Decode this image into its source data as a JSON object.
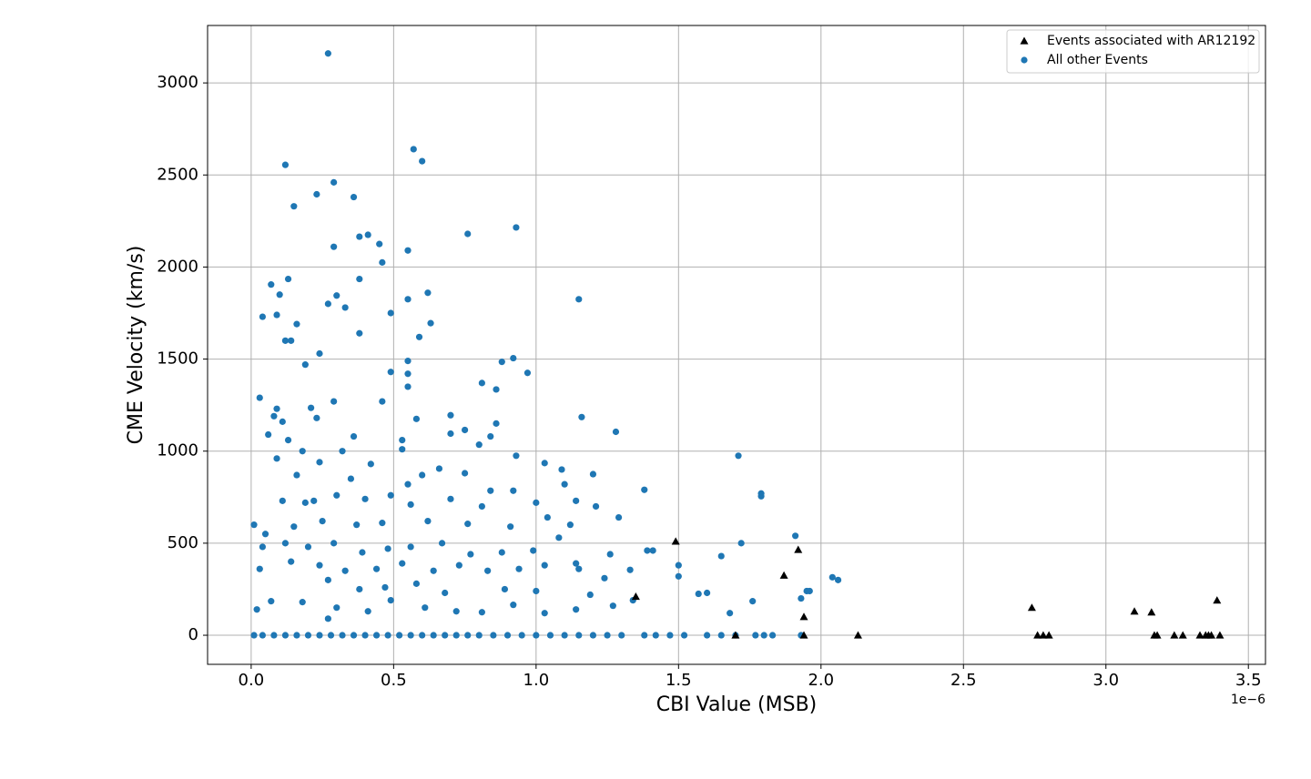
{
  "chart_data": {
    "type": "scatter",
    "x_label": "CBI Value (MSB)",
    "y_label": "CME Velocity (km/s)",
    "x_offset_label": "1e−6",
    "xlim": [
      -0.153,
      3.56
    ],
    "ylim": [
      -158,
      3312
    ],
    "xticks": [
      {
        "value": 0,
        "label": "0.0"
      },
      0.5,
      {
        "value": 1,
        "label": "1.0"
      },
      1.5,
      {
        "value": 2,
        "label": "2.0"
      },
      2.5,
      {
        "value": 3,
        "label": "3.0"
      },
      3.5
    ],
    "yticks": [
      0,
      500,
      1000,
      1500,
      2000,
      2500,
      3000
    ],
    "grid": true,
    "legend": "upper right",
    "series": [
      {
        "name": "Events associated with AR12192",
        "color": "#000000",
        "marker": "triangle",
        "x": [
          1.35,
          1.49,
          1.7,
          1.87,
          1.92,
          1.94,
          1.94,
          2.13,
          2.74,
          2.76,
          2.78,
          2.8,
          3.1,
          3.16,
          3.17,
          3.18,
          3.24,
          3.27,
          3.33,
          3.35,
          3.36,
          3.37,
          3.39,
          3.4
        ],
        "values": [
          210,
          510,
          0,
          325,
          465,
          100,
          0,
          0,
          150,
          0,
          0,
          0,
          130,
          125,
          0,
          0,
          0,
          0,
          0,
          0,
          0,
          0,
          190,
          0
        ]
      },
      {
        "name": "All other Events",
        "color": "#1f77b4",
        "marker": "circle",
        "x": [
          0.27,
          0.57,
          0.6,
          0.12,
          0.93,
          0.29,
          0.23,
          0.36,
          0.15,
          0.76,
          0.41,
          0.38,
          0.55,
          0.29,
          0.45,
          0.46,
          0.13,
          0.07,
          0.38,
          0.62,
          0.1,
          0.27,
          0.3,
          0.55,
          1.15,
          0.04,
          0.09,
          0.33,
          0.49,
          0.63,
          0.16,
          0.12,
          0.14,
          0.59,
          0.38,
          0.92,
          0.88,
          0.97,
          0.55,
          0.19,
          0.24,
          0.55,
          0.49,
          0.81,
          0.86,
          0.55,
          0.03,
          0.09,
          0.21,
          0.29,
          0.46,
          0.7,
          0.58,
          1.16,
          0.08,
          0.11,
          0.23,
          0.86,
          0.75,
          1.28,
          0.06,
          0.13,
          0.36,
          0.7,
          0.53,
          0.8,
          0.84,
          0.18,
          0.32,
          0.53,
          0.93,
          1.71,
          0.09,
          0.24,
          0.42,
          0.66,
          1.03,
          1.09,
          1.2,
          0.16,
          0.35,
          0.6,
          0.75,
          0.55,
          1.1,
          0.22,
          0.3,
          0.4,
          0.49,
          0.7,
          0.84,
          0.92,
          1.0,
          1.14,
          1.38,
          1.79,
          1.79,
          0.11,
          0.19,
          0.56,
          0.81,
          0.01,
          0.05,
          0.15,
          0.25,
          0.37,
          0.46,
          0.62,
          0.76,
          0.91,
          1.04,
          1.12,
          1.21,
          1.29,
          0.04,
          0.12,
          0.2,
          0.29,
          0.39,
          0.48,
          0.56,
          0.67,
          0.77,
          0.88,
          0.99,
          1.08,
          1.14,
          1.26,
          1.39,
          1.41,
          1.5,
          1.65,
          1.72,
          1.91,
          0.03,
          0.14,
          0.24,
          0.33,
          0.44,
          0.53,
          0.64,
          0.73,
          0.83,
          0.94,
          1.03,
          1.15,
          1.24,
          1.33,
          1.5,
          1.76,
          1.57,
          1.6,
          2.04,
          2.06,
          1.93,
          1.95,
          1.96,
          0.02,
          0.07,
          0.18,
          0.27,
          0.3,
          0.41,
          0.49,
          0.61,
          0.72,
          0.81,
          0.92,
          1.03,
          1.14,
          1.27,
          1.34,
          1.68,
          0.27,
          0.38,
          0.47,
          0.58,
          0.68,
          0.89,
          1.0,
          1.19,
          0.01,
          0.04,
          0.08,
          0.12,
          0.16,
          0.2,
          0.24,
          0.28,
          0.32,
          0.36,
          0.4,
          0.44,
          0.48,
          0.52,
          0.56,
          0.6,
          0.64,
          0.68,
          0.72,
          0.76,
          0.8,
          0.85,
          0.9,
          0.95,
          1.0,
          1.05,
          1.1,
          1.15,
          1.2,
          1.25,
          1.3,
          1.38,
          1.42,
          1.47,
          1.52,
          1.6,
          1.65,
          1.7,
          1.77,
          1.8,
          1.83,
          1.93
        ],
        "values": [
          3160,
          2640,
          2575,
          2555,
          2215,
          2460,
          2395,
          2380,
          2330,
          2180,
          2175,
          2165,
          2090,
          2110,
          2125,
          2025,
          1935,
          1905,
          1935,
          1860,
          1850,
          1800,
          1845,
          1825,
          1825,
          1730,
          1740,
          1780,
          1750,
          1695,
          1690,
          1600,
          1600,
          1620,
          1640,
          1505,
          1485,
          1425,
          1490,
          1470,
          1530,
          1420,
          1430,
          1370,
          1335,
          1350,
          1290,
          1230,
          1235,
          1270,
          1270,
          1195,
          1175,
          1185,
          1190,
          1160,
          1180,
          1150,
          1115,
          1105,
          1090,
          1060,
          1080,
          1095,
          1060,
          1035,
          1080,
          1000,
          1000,
          1010,
          975,
          975,
          960,
          940,
          930,
          905,
          935,
          900,
          875,
          870,
          850,
          870,
          880,
          820,
          820,
          730,
          760,
          740,
          760,
          740,
          785,
          785,
          720,
          730,
          790,
          770,
          755,
          730,
          720,
          710,
          700,
          600,
          550,
          590,
          620,
          600,
          610,
          620,
          605,
          590,
          640,
          600,
          700,
          640,
          480,
          500,
          480,
          500,
          450,
          470,
          480,
          500,
          440,
          450,
          460,
          530,
          390,
          440,
          460,
          460,
          380,
          430,
          500,
          540,
          360,
          400,
          380,
          350,
          360,
          390,
          350,
          380,
          350,
          360,
          380,
          360,
          310,
          355,
          320,
          185,
          225,
          230,
          315,
          300,
          200,
          240,
          240,
          140,
          185,
          180,
          90,
          150,
          130,
          190,
          150,
          130,
          125,
          165,
          120,
          140,
          160,
          190,
          120,
          300,
          250,
          260,
          280,
          230,
          250,
          240,
          220,
          0,
          0,
          0,
          0,
          0,
          0,
          0,
          0,
          0,
          0,
          0,
          0,
          0,
          0,
          0,
          0,
          0,
          0,
          0,
          0,
          0,
          0,
          0,
          0,
          0,
          0,
          0,
          0,
          0,
          0,
          0,
          0,
          0,
          0,
          0,
          0,
          0,
          0,
          0,
          0,
          0,
          0
        ]
      }
    ]
  }
}
